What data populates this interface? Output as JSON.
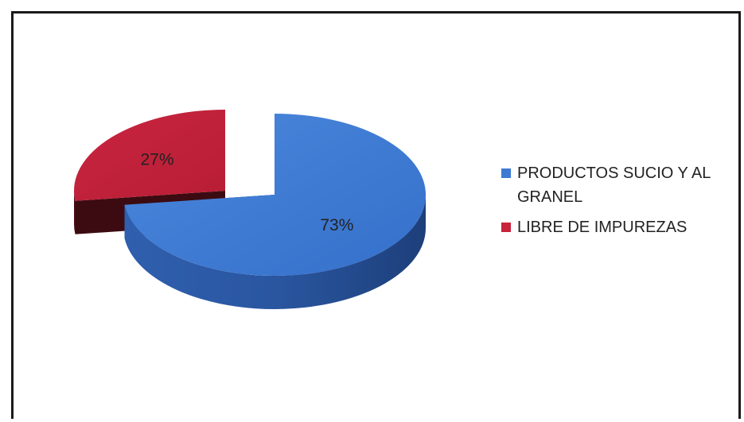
{
  "chart_data": {
    "type": "pie",
    "title": "",
    "series": [
      {
        "slices": [
          {
            "label": "PRODUCTOS SUCIO Y AL GRANEL",
            "value": 73,
            "value_label": "73%",
            "color": "#3e7ad2",
            "exploded": false
          },
          {
            "label": "LIBRE DE IMPUREZAS",
            "value": 27,
            "value_label": "27%",
            "color": "#c8233a",
            "exploded": true
          }
        ]
      }
    ],
    "style": "3d",
    "legend": "right"
  }
}
